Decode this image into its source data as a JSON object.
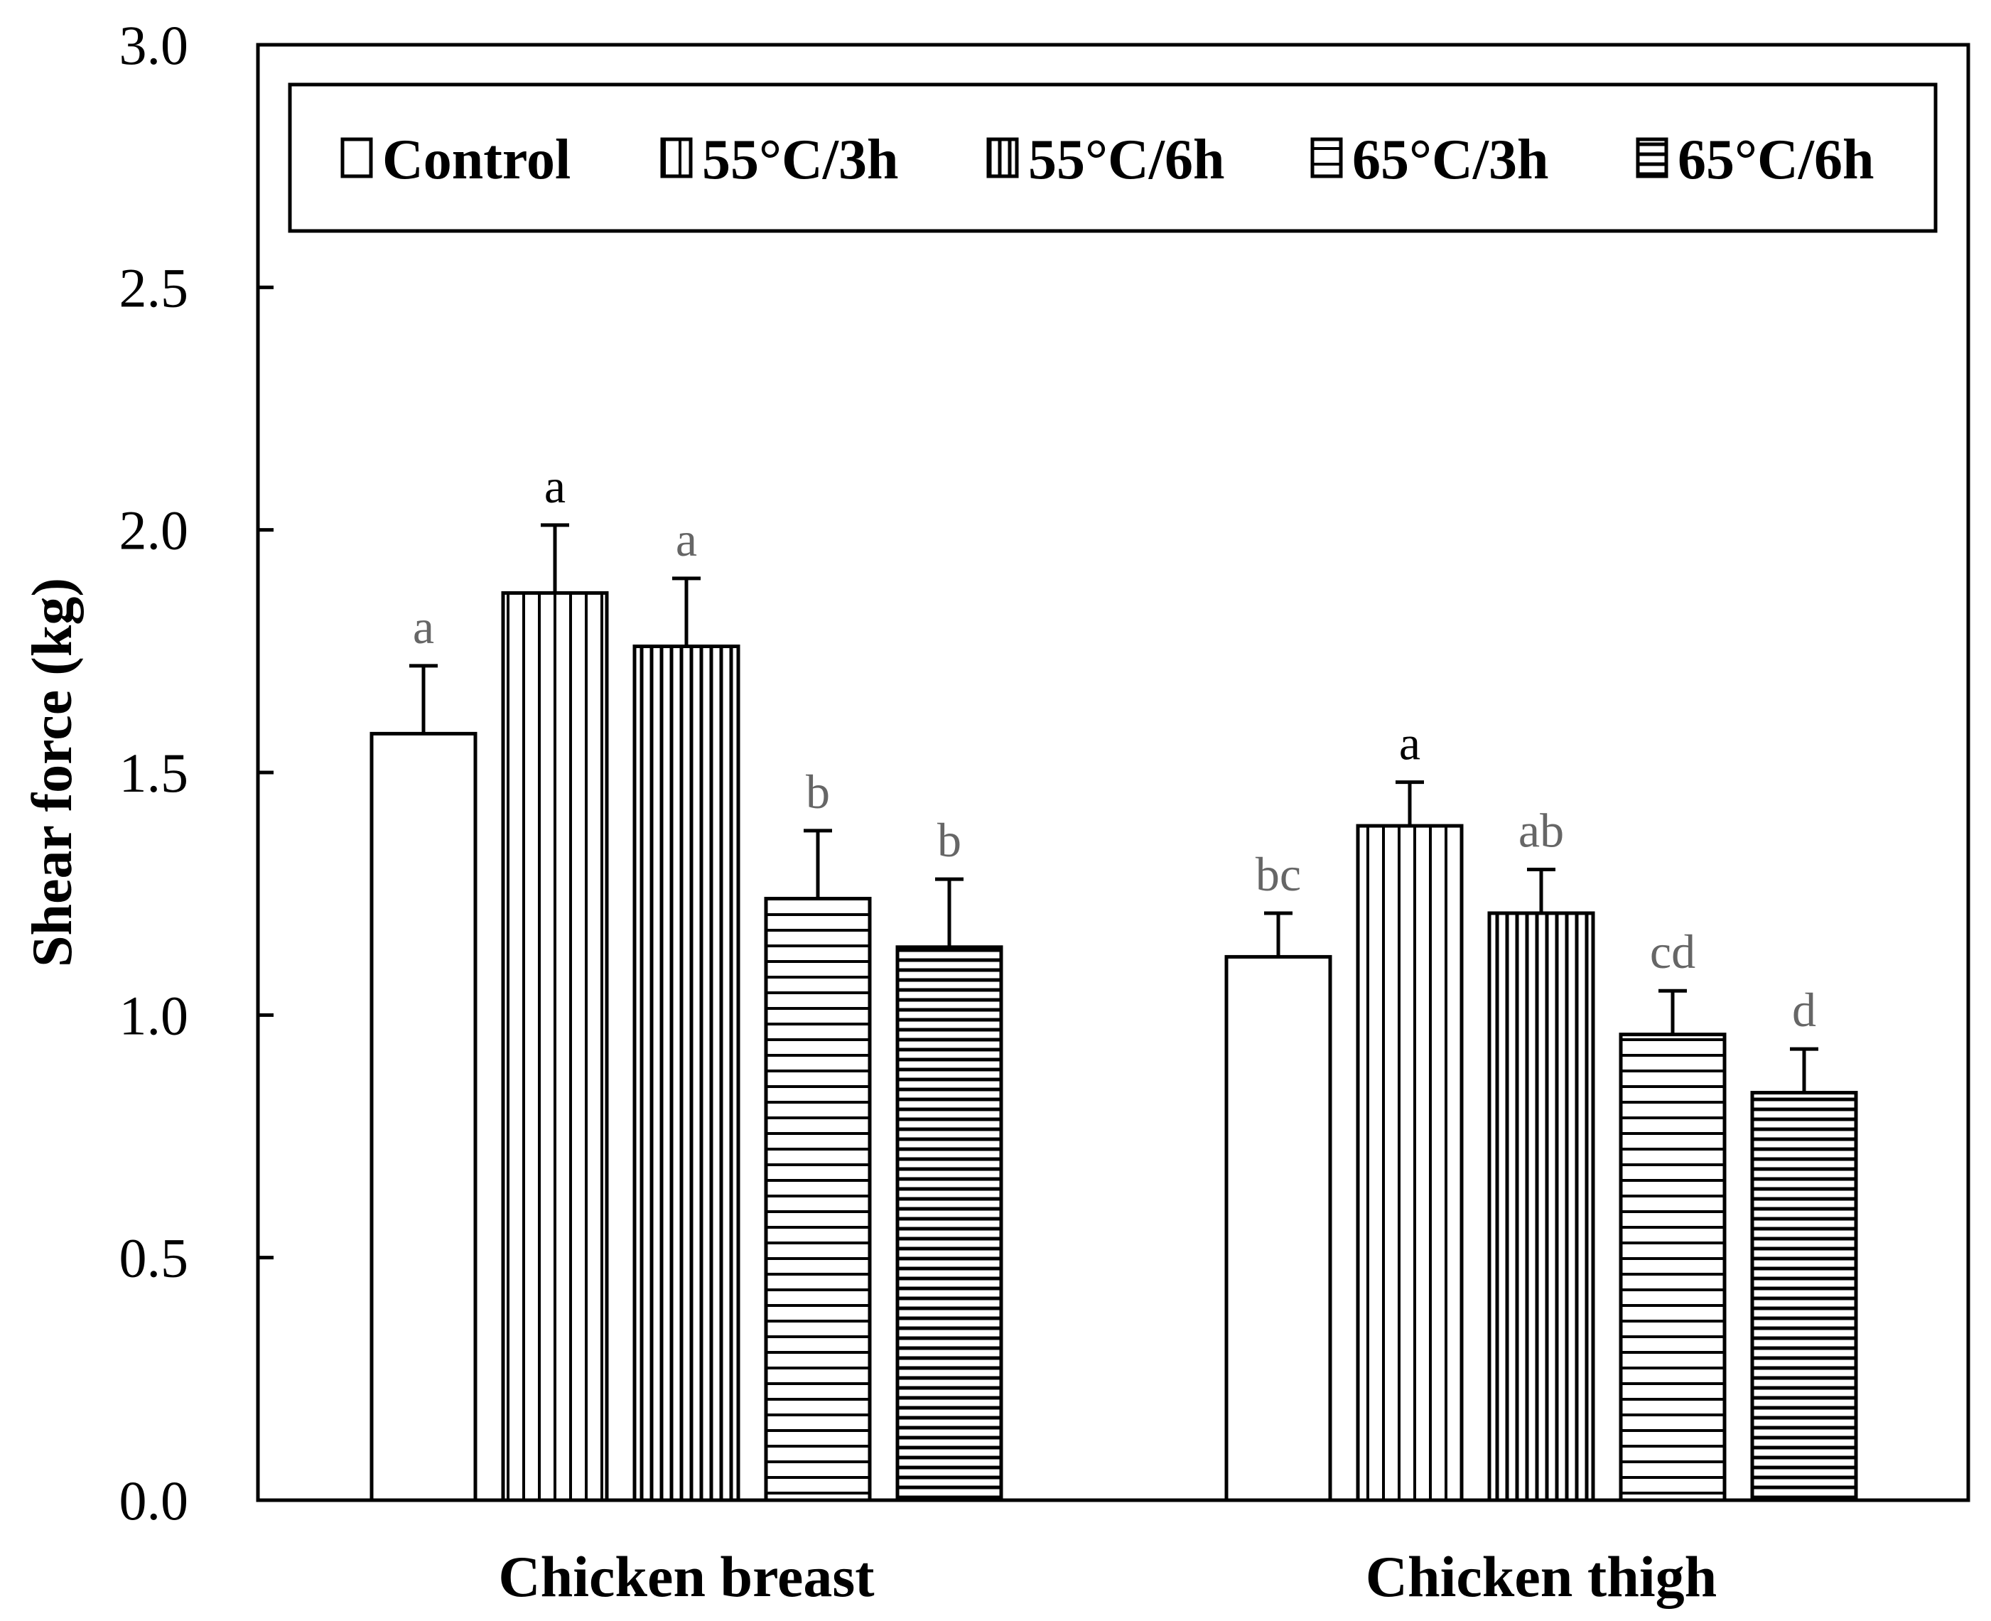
{
  "chart_data": {
    "type": "bar",
    "title": "",
    "xlabel": "",
    "ylabel": "Shear force (kg)",
    "ylim": [
      0,
      3.0
    ],
    "yticks": [
      "0.0",
      "0.5",
      "1.0",
      "1.5",
      "2.0",
      "2.5",
      "3.0"
    ],
    "categories": [
      "Chicken breast",
      "Chicken thigh"
    ],
    "legend_position": "top",
    "series": [
      {
        "name": "Control",
        "pattern": "none",
        "values": [
          1.58,
          1.12
        ],
        "errors": [
          0.14,
          0.09
        ],
        "letters": [
          "a",
          "bc"
        ],
        "letter_colors": [
          "#666666",
          "#666666"
        ]
      },
      {
        "name": "55°C/3h",
        "pattern": "vertical-sparse",
        "values": [
          1.87,
          1.39
        ],
        "errors": [
          0.14,
          0.09
        ],
        "letters": [
          "a",
          "a"
        ],
        "letter_colors": [
          "#000000",
          "#000000"
        ]
      },
      {
        "name": "55°C/6h",
        "pattern": "vertical-dense",
        "values": [
          1.76,
          1.21
        ],
        "errors": [
          0.14,
          0.09
        ],
        "letters": [
          "a",
          "ab"
        ],
        "letter_colors": [
          "#666666",
          "#666666"
        ]
      },
      {
        "name": "65°C/3h",
        "pattern": "horizontal-sparse",
        "values": [
          1.24,
          0.96
        ],
        "errors": [
          0.14,
          0.09
        ],
        "letters": [
          "b",
          "cd"
        ],
        "letter_colors": [
          "#666666",
          "#666666"
        ]
      },
      {
        "name": "65°C/6h",
        "pattern": "horizontal-dense",
        "values": [
          1.14,
          0.84
        ],
        "errors": [
          0.14,
          0.09
        ],
        "letters": [
          "b",
          "d"
        ],
        "letter_colors": [
          "#666666",
          "#666666"
        ]
      }
    ]
  }
}
